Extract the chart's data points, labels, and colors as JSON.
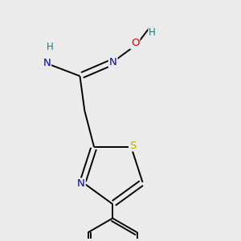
{
  "background_color": "#ebebeb",
  "bond_color": "#000000",
  "atom_colors": {
    "N": "#0000cc",
    "O": "#dd0000",
    "S": "#bbaa00",
    "H": "#008080"
  },
  "figsize": [
    3.0,
    3.0
  ],
  "dpi": 100,
  "lw": 1.4
}
